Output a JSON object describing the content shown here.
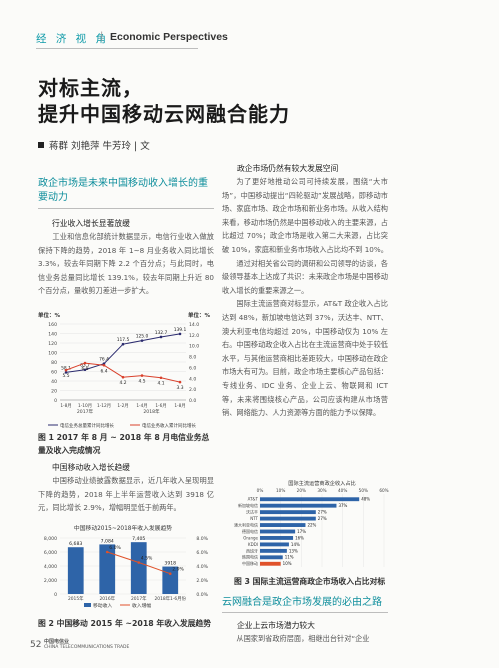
{
  "header": {
    "section_cn": "经 济 视 角",
    "separator": "|",
    "section_en": "Economic Perspectives"
  },
  "article": {
    "title_line1": "对标主流，",
    "title_line2": "提升中国移动云网融合能力",
    "authors": "蒋群  刘艳萍  牛芳玲  | 文"
  },
  "left_column": {
    "heading1": "政企市场是未来中国移动收入增长的重要动力",
    "subhead1": "行业收入增长显著放缓",
    "para1": "工业和信息化部统计数据显示，电信行业收入做放保持下降的趋势，2018 年 1~8 月业务收入同比增长 3.3%，较去年同期下降 2.2 个百分点；与此同时，电信业务总量同比增长 139.1%，较去年同期上升近 80 个百分点，量收剪刀差进一步扩大。",
    "subhead2": "中国移动收入增长趋缓",
    "para2": "中国移动业绩披露数据显示，近几年收入呈现明显下降的趋势，2018 年上半年运营收入达到 3918 亿元，同比增长 2.9%，增幅明显低于前两年。"
  },
  "right_column": {
    "subhead1": "政企市场仍然有较大发展空间",
    "para1": "为了更好地推动公司可持续发展，围绕“大市场”，中国移动提出“四轮驱动”发展战略，即移动市场、家庭市场、政企市场和新业务市场。从收入结构来看，移动市场仍然是中国移动收入的主要来源，占比超过 70%；政企市场是收入第二大来源，占比突破 10%，家庭和新业务市场收入占比均不到 10%。",
    "para2": "通过对相关省公司的调研和公司领导的访谈，各级领导基本上达成了共识：未来政企市场是中国移动收入增长的重要来源之一。",
    "para3": "国际主流运营商对标显示，AT&T 政企收入占比达到 48%，新加坡电信达到 37%，沃达丰、NTT、澳大利亚电信均超过 20%，中国移动仅为 10% 左右。中国移动政企收入占比在主流运营商中处于较低水平，与其他运营商相比差距较大，中国移动在政企市场大有可为。目前，政企市场主要核心产品包括：专线业务、IDC 业务、企业上云、物联网和 ICT 等，未来将围绕核心产品，公司应该构建从市场营销、网络能力、人力资源等方面的能力予以保障。",
    "heading2": "云网融合是政企市场发展的必由之路",
    "subhead2": "企业上云市场潜力较大",
    "para4": "从国家到省政府层面，相继出台针对“企业"
  },
  "figure1": {
    "caption_line1": "图 1  2017 年 8 月 ~ 2018 年 8 月电信业务总",
    "caption_line2": "量及收入完成情况",
    "left_axis_label": "单位：%",
    "right_axis_label": "单位：%",
    "legend": [
      "电信业务总量累计同比增长",
      "电信业务收入累计同比增长"
    ],
    "year_labels": [
      "2017年",
      "2018年"
    ]
  },
  "figure2": {
    "caption": "图 2  中国移动 2015 年 ~2018 年收入发展趋势",
    "title": "中国移动2015~2018年收入发展趋势",
    "legend": [
      "移动收入",
      "收入增幅"
    ]
  },
  "figure3": {
    "caption": "图 3  国际主流运营商政企市场收入占比对标",
    "title": "国际主流运营商政企收入占比"
  },
  "footer": {
    "page_number": "52",
    "logo_line1": "中国电信业",
    "logo_line2": "CHINA TELECOMMUNICATIONS TRADE"
  },
  "chart_data": [
    {
      "type": "line",
      "title": "",
      "x": [
        "1-8月",
        "1-10月",
        "1-12月",
        "1-2月",
        "1-4月",
        "1-6月",
        "1-8月"
      ],
      "series": [
        {
          "name": "电信业务总量累计同比增长",
          "values": [
            58.1,
            63.7,
            76.4,
            117.5,
            125.0,
            132.7,
            139.1
          ],
          "axis": "left"
        },
        {
          "name": "电信业务收入累计同比增长",
          "values": [
            5.5,
            6.8,
            6.4,
            4.2,
            4.5,
            4.1,
            3.3
          ],
          "axis": "right"
        }
      ],
      "ylim_left": [
        0,
        160
      ],
      "ylim_right": [
        0,
        14
      ],
      "left_ticks": [
        0,
        20,
        40,
        60,
        80,
        100,
        120,
        140,
        160
      ],
      "right_ticks": [
        "0.0",
        "2.0",
        "4.0",
        "6.0",
        "8.0",
        "10.0",
        "12.0",
        "14.0"
      ],
      "ylabel": "单位：%",
      "ylabel_right": "单位：%"
    },
    {
      "type": "bar",
      "title": "中国移动2015~2018年收入发展趋势",
      "categories": [
        "2015年",
        "2016年",
        "2017年",
        "2018年1-6月份"
      ],
      "series": [
        {
          "name": "移动收入",
          "values": [
            6683,
            7084,
            7405,
            3918
          ],
          "axis": "left"
        },
        {
          "name": "收入增幅",
          "values": [
            null,
            6.0,
            4.5,
            2.9
          ],
          "axis": "right",
          "labels": [
            "",
            "6.0%",
            "4.5%",
            "2.9%"
          ]
        }
      ],
      "ylim_left": [
        0,
        8000
      ],
      "ylim_right": [
        0,
        8
      ],
      "left_ticks": [
        "0",
        "2,000",
        "4,000",
        "6,000",
        "8,000"
      ],
      "right_ticks": [
        "0.0%",
        "2.0%",
        "4.0%",
        "6.0%",
        "8.0%"
      ],
      "data_labels": [
        "6,683",
        "7,084",
        "7,405",
        "3918"
      ],
      "colors": {
        "bar": "#2e64a8",
        "line": "#e0522a"
      }
    },
    {
      "type": "bar",
      "orientation": "horizontal",
      "title": "国际主流运营商政企收入占比",
      "categories": [
        "AT&T",
        "新加坡电信",
        "沃达丰",
        "NTT",
        "澳大利亚电信",
        "德国电信",
        "Orange",
        "KDDI",
        "西班牙",
        "韩国电信",
        "中国移动"
      ],
      "values": [
        48,
        37,
        27,
        27,
        22,
        17,
        16,
        14,
        13,
        11,
        10
      ],
      "xlim": [
        0,
        60
      ],
      "x_ticks": [
        "0%",
        "10%",
        "20%",
        "30%",
        "40%",
        "50%",
        "60%"
      ],
      "colors": {
        "bar": "#2e64a8",
        "highlight": "#e0522a"
      }
    }
  ]
}
